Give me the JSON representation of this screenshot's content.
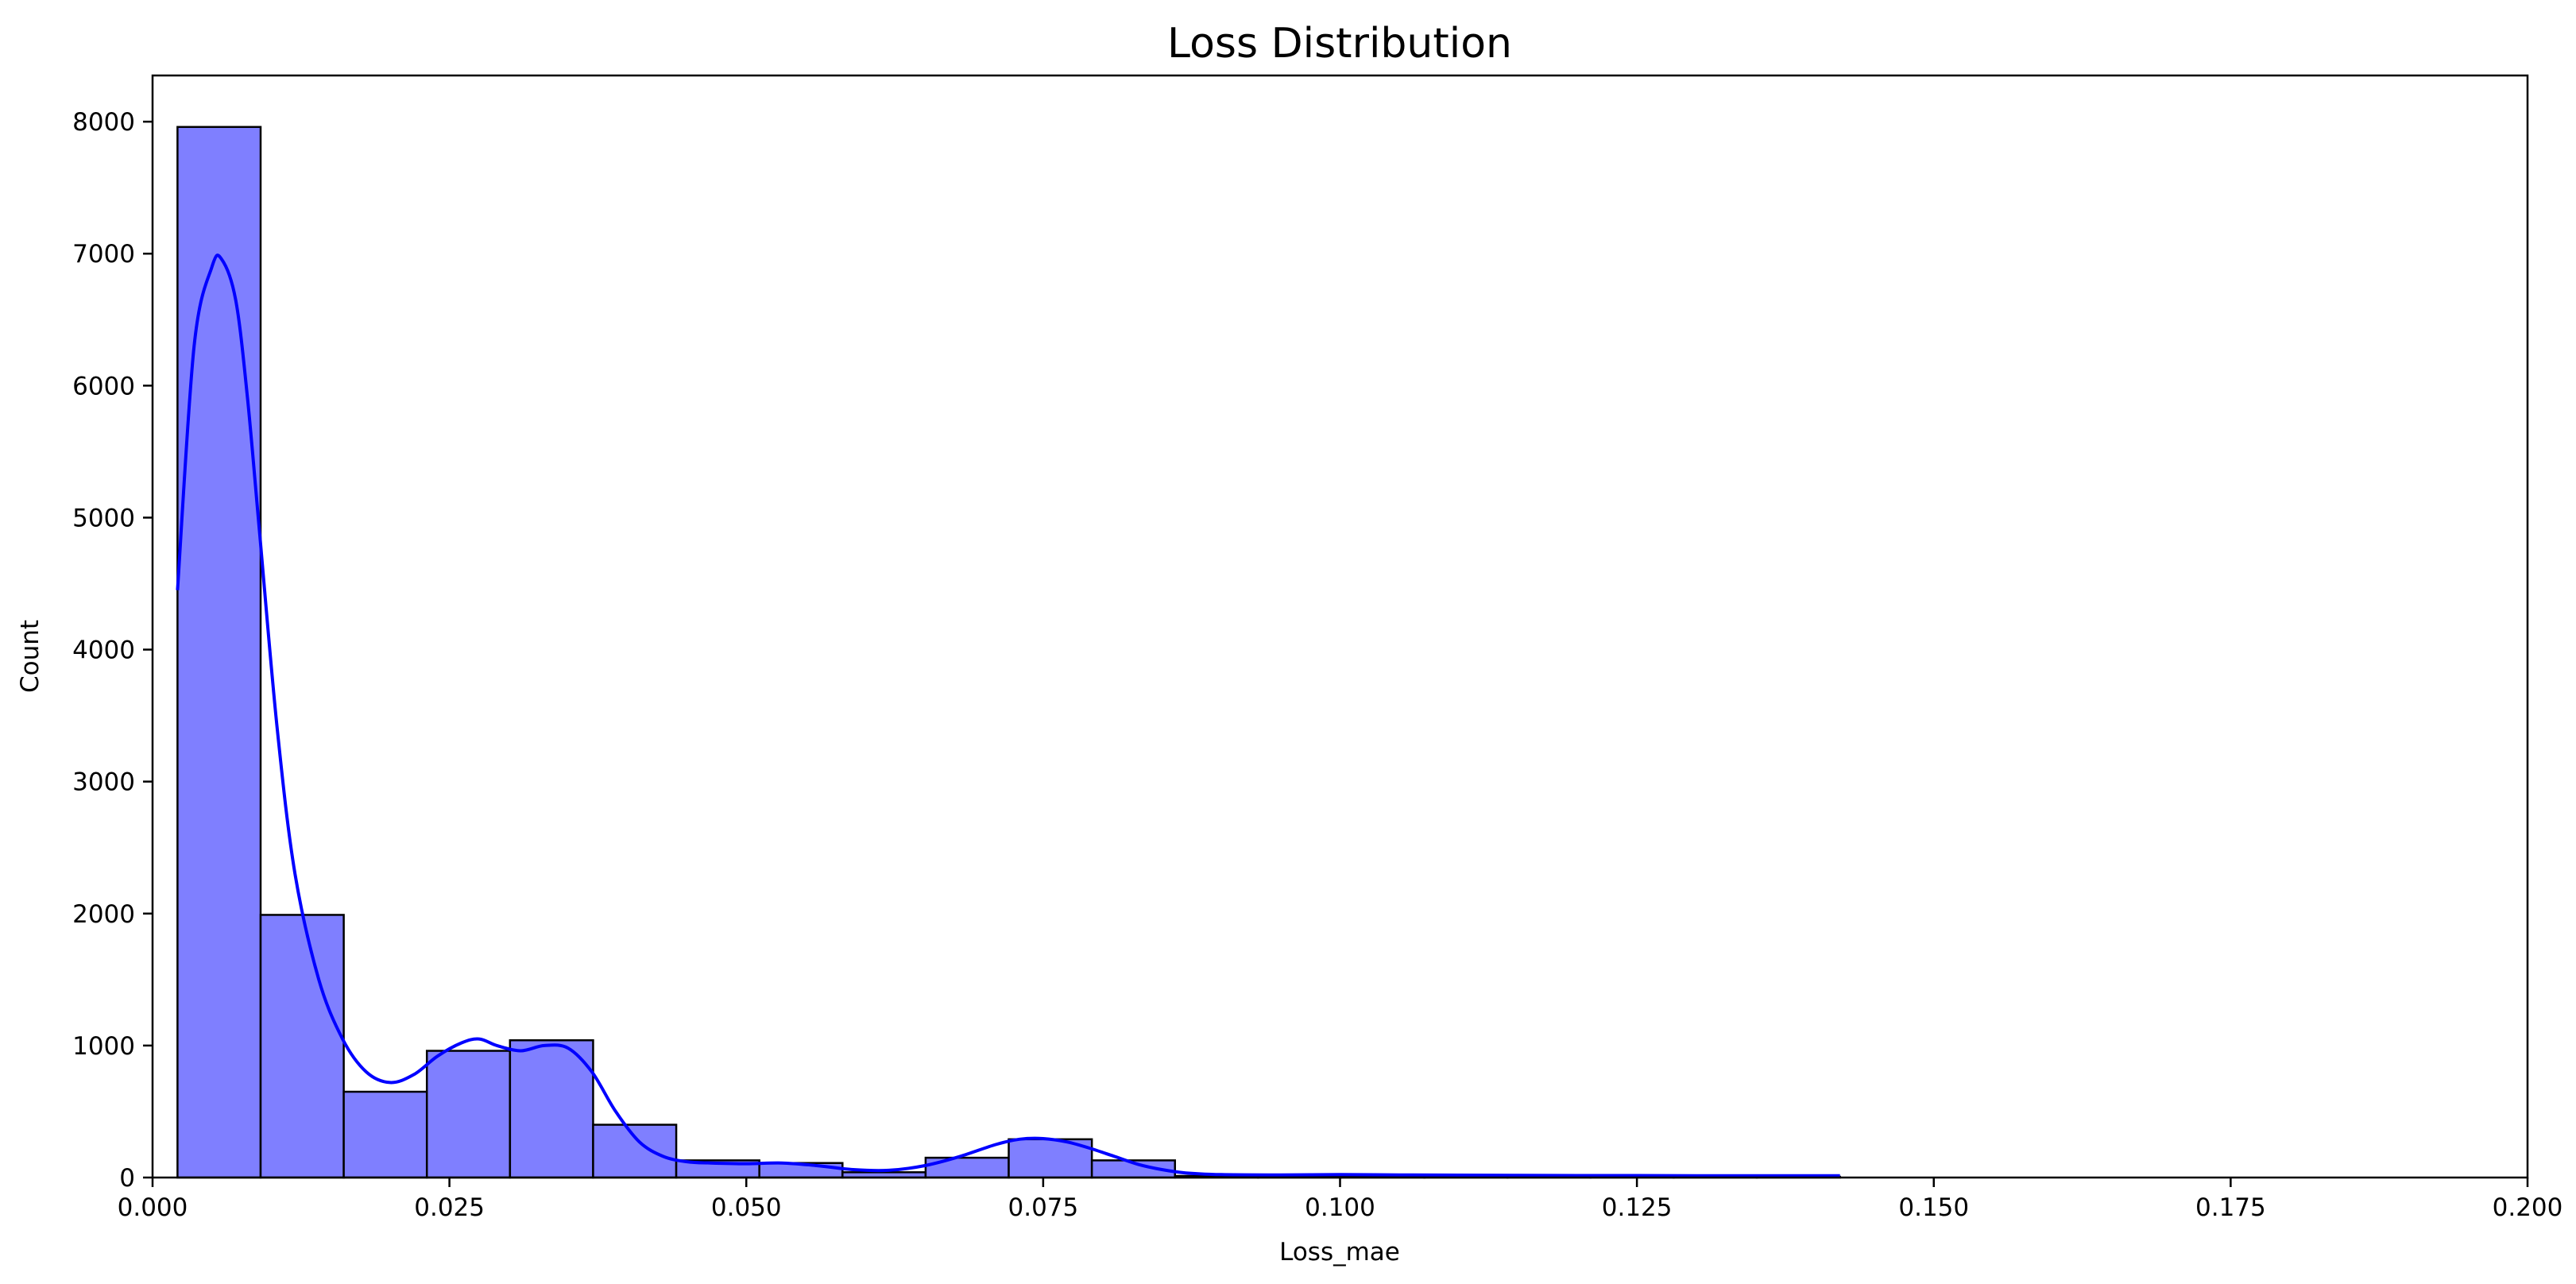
{
  "chart_data": {
    "type": "bar",
    "subtype": "histogram-with-kde",
    "title": "Loss Distribution",
    "xlabel": "Loss_mae",
    "ylabel": "Count",
    "xlim": [
      0.0,
      0.2
    ],
    "ylim": [
      0,
      8350
    ],
    "xticks": [
      {
        "value": 0.0,
        "label": "0.000"
      },
      {
        "value": 0.025,
        "label": "0.025"
      },
      {
        "value": 0.05,
        "label": "0.050"
      },
      {
        "value": 0.075,
        "label": "0.075"
      },
      {
        "value": 0.1,
        "label": "0.100"
      },
      {
        "value": 0.125,
        "label": "0.125"
      },
      {
        "value": 0.15,
        "label": "0.150"
      },
      {
        "value": 0.175,
        "label": "0.175"
      },
      {
        "value": 0.2,
        "label": "0.200"
      }
    ],
    "yticks": [
      {
        "value": 0,
        "label": "0"
      },
      {
        "value": 1000,
        "label": "1000"
      },
      {
        "value": 2000,
        "label": "2000"
      },
      {
        "value": 3000,
        "label": "3000"
      },
      {
        "value": 4000,
        "label": "4000"
      },
      {
        "value": 5000,
        "label": "5000"
      },
      {
        "value": 6000,
        "label": "6000"
      },
      {
        "value": 7000,
        "label": "7000"
      },
      {
        "value": 8000,
        "label": "8000"
      }
    ],
    "bins": [
      {
        "x0": 0.0021,
        "x1": 0.0091,
        "count": 7960
      },
      {
        "x0": 0.0091,
        "x1": 0.0161,
        "count": 1990
      },
      {
        "x0": 0.0161,
        "x1": 0.0231,
        "count": 650
      },
      {
        "x0": 0.0231,
        "x1": 0.0301,
        "count": 960
      },
      {
        "x0": 0.0301,
        "x1": 0.0371,
        "count": 1040
      },
      {
        "x0": 0.0371,
        "x1": 0.0441,
        "count": 400
      },
      {
        "x0": 0.0441,
        "x1": 0.0511,
        "count": 130
      },
      {
        "x0": 0.0511,
        "x1": 0.0581,
        "count": 110
      },
      {
        "x0": 0.0581,
        "x1": 0.0651,
        "count": 40
      },
      {
        "x0": 0.0651,
        "x1": 0.0721,
        "count": 150
      },
      {
        "x0": 0.0721,
        "x1": 0.0791,
        "count": 290
      },
      {
        "x0": 0.0791,
        "x1": 0.0861,
        "count": 130
      },
      {
        "x0": 0.0861,
        "x1": 0.0931,
        "count": 12
      },
      {
        "x0": 0.0931,
        "x1": 0.1001,
        "count": 8
      },
      {
        "x0": 0.1001,
        "x1": 0.1071,
        "count": 12
      },
      {
        "x0": 0.1071,
        "x1": 0.1141,
        "count": 6
      },
      {
        "x0": 0.1141,
        "x1": 0.1211,
        "count": 5
      },
      {
        "x0": 0.1211,
        "x1": 0.1281,
        "count": 6
      },
      {
        "x0": 0.1281,
        "x1": 0.1351,
        "count": 4
      },
      {
        "x0": 0.1351,
        "x1": 0.1421,
        "count": 6
      }
    ],
    "kde": {
      "x": [
        0.0021,
        0.0035,
        0.005,
        0.0058,
        0.007,
        0.008,
        0.009,
        0.0105,
        0.012,
        0.014,
        0.016,
        0.018,
        0.02,
        0.022,
        0.024,
        0.026,
        0.0275,
        0.029,
        0.031,
        0.033,
        0.035,
        0.037,
        0.039,
        0.041,
        0.043,
        0.045,
        0.047,
        0.05,
        0.053,
        0.056,
        0.059,
        0.062,
        0.065,
        0.068,
        0.071,
        0.073,
        0.075,
        0.077,
        0.079,
        0.081,
        0.083,
        0.085,
        0.087,
        0.09,
        0.095,
        0.1,
        0.105,
        0.11,
        0.115,
        0.12,
        0.125,
        0.13,
        0.135,
        0.1421
      ],
      "y": [
        4450,
        6300,
        6900,
        6960,
        6650,
        5900,
        4900,
        3400,
        2300,
        1500,
        1050,
        800,
        720,
        780,
        920,
        1020,
        1050,
        1000,
        960,
        1000,
        980,
        800,
        500,
        270,
        160,
        120,
        110,
        105,
        110,
        90,
        60,
        55,
        90,
        160,
        250,
        290,
        295,
        270,
        220,
        160,
        100,
        60,
        35,
        22,
        20,
        22,
        20,
        18,
        16,
        15,
        15,
        14,
        14,
        14
      ]
    },
    "bar_fill": "#7f7fff",
    "bar_edge": "#000000",
    "kde_color": "#0000ff",
    "grid": false,
    "legend": "none"
  }
}
